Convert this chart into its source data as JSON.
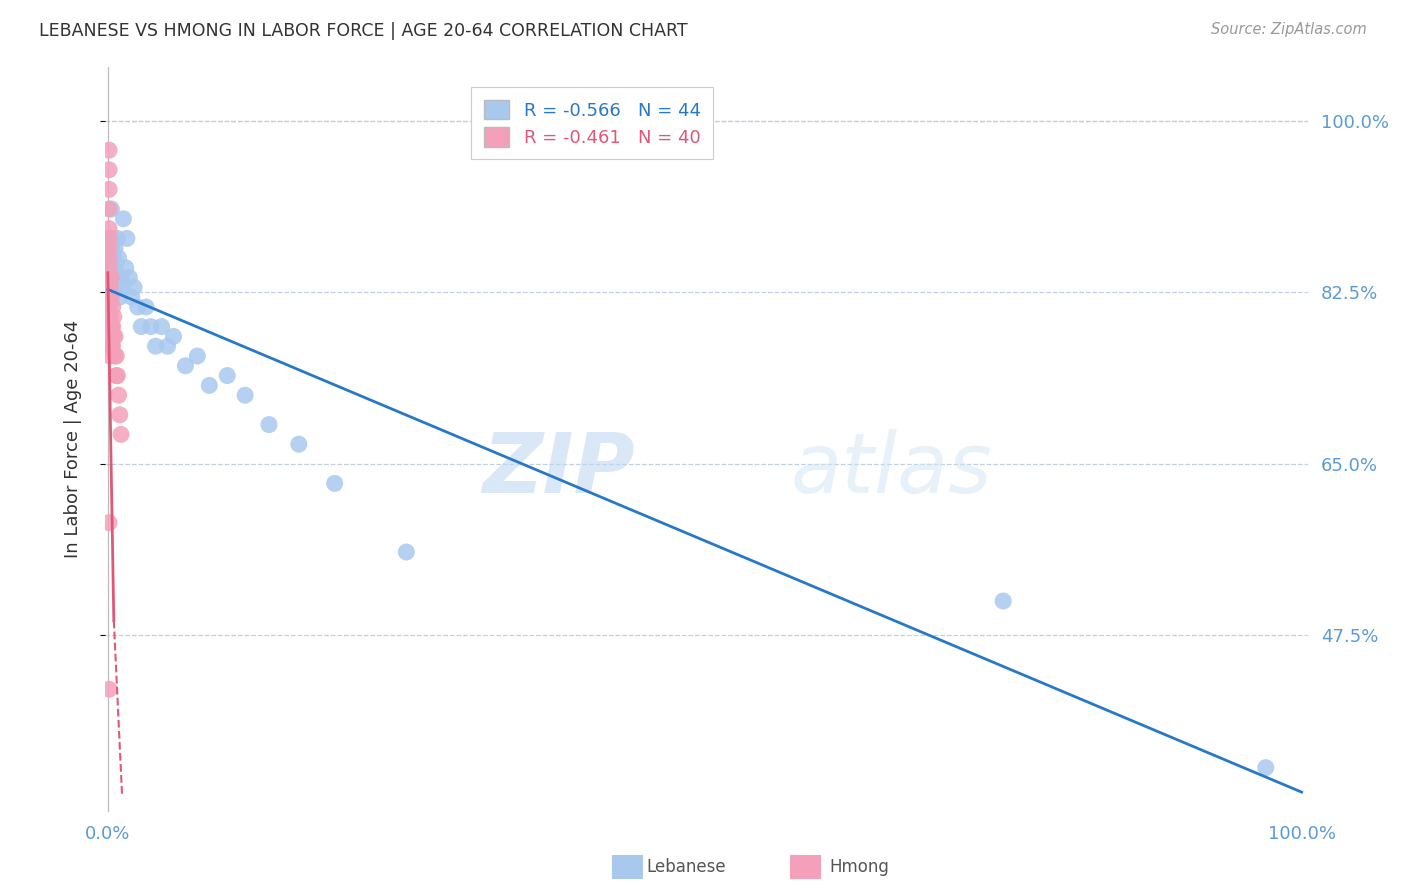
{
  "title": "LEBANESE VS HMONG IN LABOR FORCE | AGE 20-64 CORRELATION CHART",
  "source": "Source: ZipAtlas.com",
  "ylabel": "In Labor Force | Age 20-64",
  "legend_label1": "Lebanese",
  "legend_label2": "Hmong",
  "R1": -0.566,
  "N1": 44,
  "R2": -0.461,
  "N2": 40,
  "color_blue": "#A8C8EE",
  "color_pink": "#F4A0BA",
  "color_blue_line": "#2878C8",
  "color_pink_line": "#E05878",
  "color_tick": "#5B9BD5",
  "color_grid": "#C0D0E0",
  "background_color": "#FFFFFF",
  "watermark_zip": "ZIP",
  "watermark_atlas": "atlas",
  "xlim": [
    -0.002,
    1.005
  ],
  "ylim": [
    0.295,
    1.055
  ],
  "yticks": [
    0.475,
    0.65,
    0.825,
    1.0
  ],
  "ytick_labels": [
    "47.5%",
    "65.0%",
    "82.5%",
    "100.0%"
  ],
  "xticks": [
    0.0,
    1.0
  ],
  "xtick_labels": [
    "0.0%",
    "100.0%"
  ],
  "lebanese_x": [
    0.001,
    0.002,
    0.002,
    0.003,
    0.003,
    0.004,
    0.004,
    0.005,
    0.005,
    0.006,
    0.006,
    0.007,
    0.007,
    0.008,
    0.009,
    0.01,
    0.01,
    0.011,
    0.012,
    0.013,
    0.015,
    0.016,
    0.018,
    0.02,
    0.022,
    0.025,
    0.028,
    0.032,
    0.036,
    0.04,
    0.045,
    0.05,
    0.055,
    0.065,
    0.075,
    0.085,
    0.1,
    0.115,
    0.135,
    0.16,
    0.19,
    0.25,
    0.75,
    0.97
  ],
  "lebanese_y": [
    0.88,
    0.86,
    0.84,
    0.91,
    0.87,
    0.88,
    0.85,
    0.86,
    0.84,
    0.85,
    0.87,
    0.84,
    0.83,
    0.88,
    0.86,
    0.84,
    0.82,
    0.84,
    0.83,
    0.9,
    0.85,
    0.88,
    0.84,
    0.82,
    0.83,
    0.81,
    0.79,
    0.81,
    0.79,
    0.77,
    0.79,
    0.77,
    0.78,
    0.75,
    0.76,
    0.73,
    0.74,
    0.72,
    0.69,
    0.67,
    0.63,
    0.56,
    0.51,
    0.34
  ],
  "hmong_x": [
    0.001,
    0.001,
    0.001,
    0.001,
    0.001,
    0.001,
    0.001,
    0.001,
    0.001,
    0.001,
    0.001,
    0.001,
    0.001,
    0.001,
    0.002,
    0.002,
    0.002,
    0.002,
    0.002,
    0.002,
    0.002,
    0.003,
    0.003,
    0.003,
    0.003,
    0.004,
    0.004,
    0.004,
    0.005,
    0.005,
    0.006,
    0.006,
    0.007,
    0.007,
    0.008,
    0.009,
    0.01,
    0.011,
    0.001,
    0.001
  ],
  "hmong_y": [
    0.97,
    0.95,
    0.93,
    0.91,
    0.89,
    0.88,
    0.87,
    0.86,
    0.85,
    0.84,
    0.83,
    0.82,
    0.81,
    0.8,
    0.84,
    0.83,
    0.82,
    0.8,
    0.79,
    0.78,
    0.76,
    0.84,
    0.82,
    0.79,
    0.77,
    0.81,
    0.79,
    0.77,
    0.8,
    0.78,
    0.78,
    0.76,
    0.76,
    0.74,
    0.74,
    0.72,
    0.7,
    0.68,
    0.59,
    0.42
  ],
  "blue_line_x0": 0.0,
  "blue_line_x1": 1.0,
  "blue_line_y0": 0.828,
  "blue_line_y1": 0.315,
  "pink_line_solid_x0": 0.0,
  "pink_line_solid_x1": 0.005,
  "pink_line_solid_y0": 0.845,
  "pink_line_solid_y1": 0.49,
  "pink_line_dashed_x0": 0.005,
  "pink_line_dashed_x1": 0.012,
  "pink_line_dashed_y0": 0.49,
  "pink_line_dashed_y1": 0.31
}
